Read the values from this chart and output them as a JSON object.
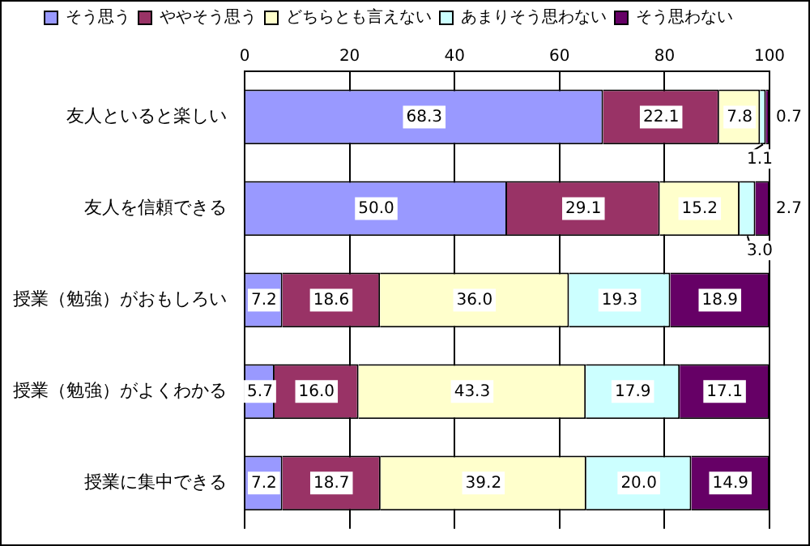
{
  "chart_data": {
    "type": "bar",
    "orientation": "horizontal",
    "stacked": true,
    "categories": [
      "友人といると楽しい",
      "友人を信頼できる",
      "授業（勉強）がおもしろい",
      "授業（勉強）がよくわかる",
      "授業に集中できる"
    ],
    "series": [
      {
        "name": "そう思う",
        "color": "#9999ff",
        "values": [
          68.3,
          50.0,
          7.2,
          5.7,
          7.2
        ],
        "value_labels": [
          "68.3",
          "50.0",
          "7.2",
          "5.7",
          "7.2"
        ]
      },
      {
        "name": "ややそう思う",
        "color": "#993366",
        "values": [
          22.1,
          29.1,
          18.6,
          16.0,
          18.7
        ],
        "value_labels": [
          "22.1",
          "29.1",
          "18.6",
          "16.0",
          "18.7"
        ]
      },
      {
        "name": "どちらとも言えない",
        "color": "#ffffcc",
        "values": [
          7.8,
          15.2,
          36.0,
          43.3,
          39.2
        ],
        "value_labels": [
          "7.8",
          "15.2",
          "36.0",
          "43.3",
          "39.2"
        ]
      },
      {
        "name": "あまりそう思わない",
        "color": "#ccffff",
        "values": [
          1.1,
          3.0,
          19.3,
          17.9,
          20.0
        ],
        "value_labels": [
          "1.1",
          "3.0",
          "19.3",
          "17.9",
          "20.0"
        ]
      },
      {
        "name": "そう思わない",
        "color": "#660066",
        "values": [
          0.7,
          2.7,
          18.9,
          17.1,
          14.9
        ],
        "value_labels": [
          "0.7",
          "2.7",
          "18.9",
          "17.1",
          "14.9"
        ]
      }
    ],
    "xlim": [
      0,
      100
    ],
    "xticks": [
      0,
      20,
      40,
      60,
      80,
      100
    ],
    "grid": "x",
    "legend": "top"
  }
}
